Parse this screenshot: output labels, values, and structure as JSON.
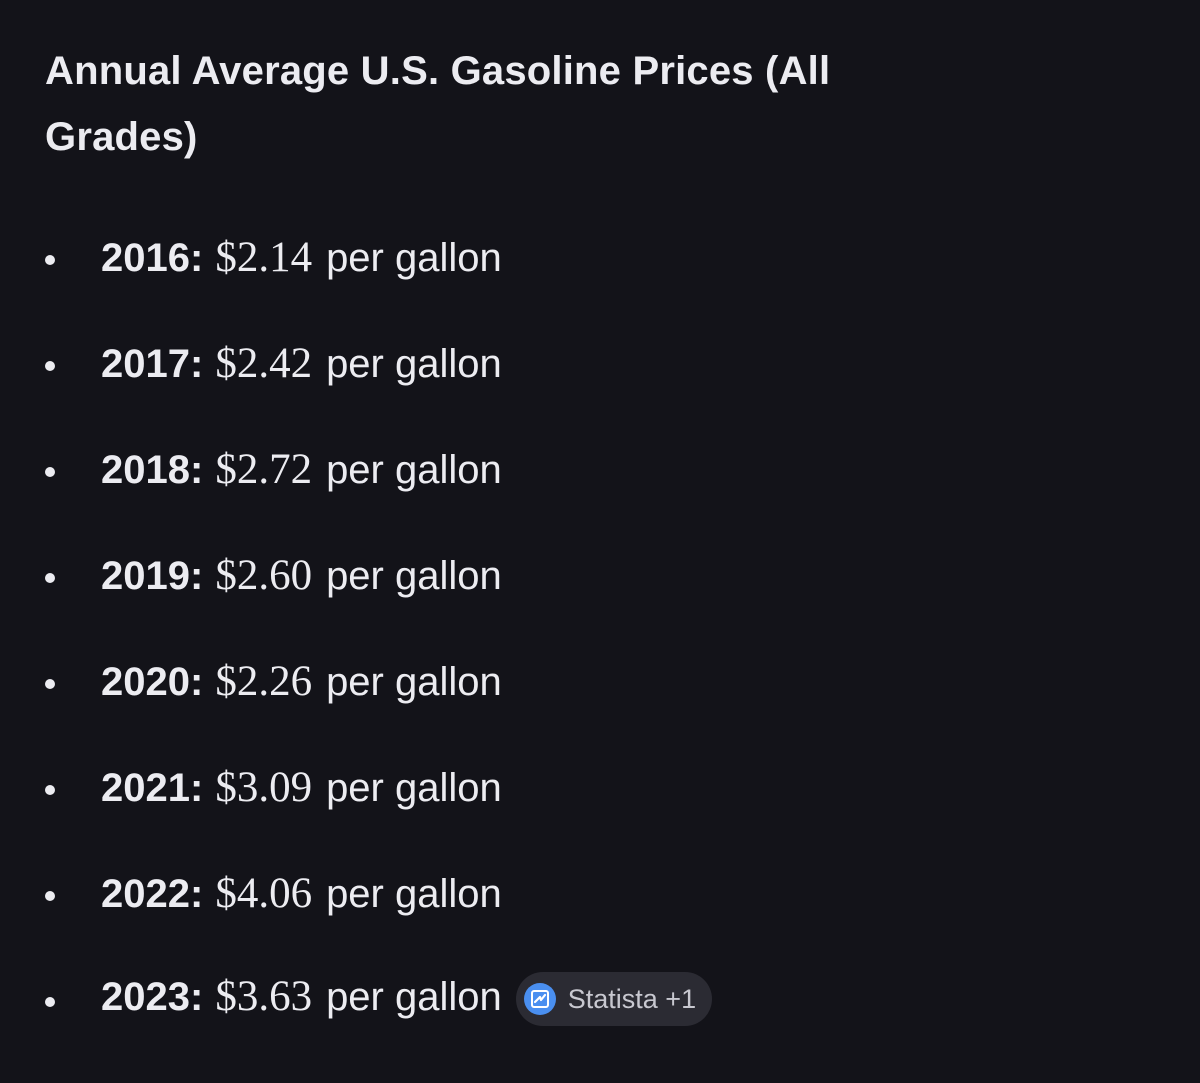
{
  "heading": "Annual Average U.S. Gasoline Prices (All Grades)",
  "items": [
    {
      "year": "2016:",
      "price": "$2.14",
      "unit": "per gallon"
    },
    {
      "year": "2017:",
      "price": "$2.42",
      "unit": "per gallon"
    },
    {
      "year": "2018:",
      "price": "$2.72",
      "unit": "per gallon"
    },
    {
      "year": "2019:",
      "price": "$2.60",
      "unit": "per gallon"
    },
    {
      "year": "2020:",
      "price": "$2.26",
      "unit": "per gallon"
    },
    {
      "year": "2021:",
      "price": "$3.09",
      "unit": "per gallon"
    },
    {
      "year": "2022:",
      "price": "$4.06",
      "unit": "per gallon"
    },
    {
      "year": "2023:",
      "price": "$3.63",
      "unit": "per gallon"
    }
  ],
  "source_chip": {
    "label": "Statista +1",
    "icon": "statista-icon"
  },
  "colors": {
    "background": "#131319",
    "text": "#ececf1",
    "chip_background": "#2b2b33",
    "chip_icon": "#4a8ff0"
  }
}
